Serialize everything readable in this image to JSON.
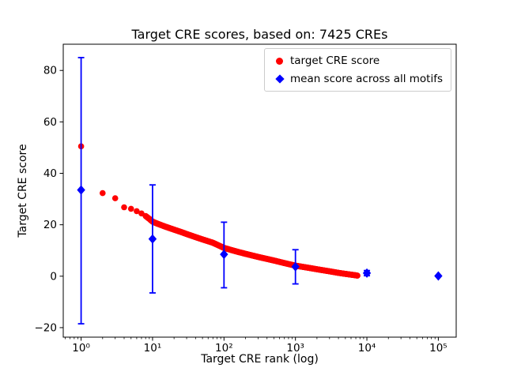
{
  "figure": {
    "title": "Target CRE scores, based on: 7425 CREs",
    "xlabel": "Target CRE rank (log)",
    "ylabel": "Target CRE score"
  },
  "legend": {
    "position": "upper right",
    "items": [
      {
        "label": "target CRE score",
        "marker": "circle",
        "color": "#ff0000"
      },
      {
        "label": "mean score across all motifs",
        "marker": "diamond",
        "color": "#0000ff"
      }
    ]
  },
  "chart_data": {
    "type": "scatter",
    "title": "Target CRE scores, based on: 7425 CREs",
    "xlabel": "Target CRE rank (log)",
    "ylabel": "Target CRE score",
    "x_scale": "log",
    "xlim_log10": [
      -0.25,
      5.25
    ],
    "ylim": [
      -23.7,
      90.2
    ],
    "grid": false,
    "xticks": [
      {
        "value": 1,
        "label": "10⁰"
      },
      {
        "value": 10,
        "label": "10¹"
      },
      {
        "value": 100,
        "label": "10²"
      },
      {
        "value": 1000,
        "label": "10³"
      },
      {
        "value": 10000,
        "label": "10⁴"
      },
      {
        "value": 100000,
        "label": "10⁵"
      }
    ],
    "yticks": [
      {
        "value": -20,
        "label": "−20"
      },
      {
        "value": 0,
        "label": "0"
      },
      {
        "value": 20,
        "label": "20"
      },
      {
        "value": 40,
        "label": "40"
      },
      {
        "value": 60,
        "label": "60"
      },
      {
        "value": 80,
        "label": "80"
      }
    ],
    "series": [
      {
        "name": "target CRE score",
        "type": "scatter",
        "marker": "circle",
        "color": "#ff0000",
        "n_points": 7425,
        "note": "dense decreasing curve of 7425 ranked scores; sampled anchor points [rank, score]",
        "points_sampled": [
          [
            1,
            50.5
          ],
          [
            2,
            32.3
          ],
          [
            3,
            30.3
          ],
          [
            4,
            26.8
          ],
          [
            5,
            26.2
          ],
          [
            6,
            25.3
          ],
          [
            7,
            24.4
          ],
          [
            8,
            23.4
          ],
          [
            9,
            22.3
          ],
          [
            10,
            21.2
          ],
          [
            12,
            20.3
          ],
          [
            15,
            19.3
          ],
          [
            20,
            18.1
          ],
          [
            25,
            17.2
          ],
          [
            30,
            16.4
          ],
          [
            40,
            15.2
          ],
          [
            50,
            14.3
          ],
          [
            70,
            13.0
          ],
          [
            100,
            11.0
          ],
          [
            150,
            9.6
          ],
          [
            200,
            8.7
          ],
          [
            300,
            7.5
          ],
          [
            500,
            6.1
          ],
          [
            700,
            5.1
          ],
          [
            1000,
            4.1
          ],
          [
            1500,
            3.3
          ],
          [
            2000,
            2.7
          ],
          [
            3000,
            1.9
          ],
          [
            4000,
            1.3
          ],
          [
            5000,
            0.9
          ],
          [
            6000,
            0.6
          ],
          [
            7000,
            0.35
          ],
          [
            7425,
            0.2
          ]
        ]
      },
      {
        "name": "mean score across all motifs",
        "type": "scatter_with_errorbars",
        "marker": "diamond",
        "color": "#0000ff",
        "points": [
          {
            "x": 1,
            "mean": 33.5,
            "lo": -18.5,
            "hi": 85.0
          },
          {
            "x": 10,
            "mean": 14.5,
            "lo": -6.5,
            "hi": 35.5
          },
          {
            "x": 100,
            "mean": 8.5,
            "lo": -4.5,
            "hi": 21.0
          },
          {
            "x": 1000,
            "mean": 3.7,
            "lo": -3.0,
            "hi": 10.3
          },
          {
            "x": 10000,
            "mean": 1.2,
            "lo": 0.2,
            "hi": 2.2
          },
          {
            "x": 100000,
            "mean": 0.1,
            "lo": 0.1,
            "hi": 0.1
          }
        ]
      }
    ]
  }
}
